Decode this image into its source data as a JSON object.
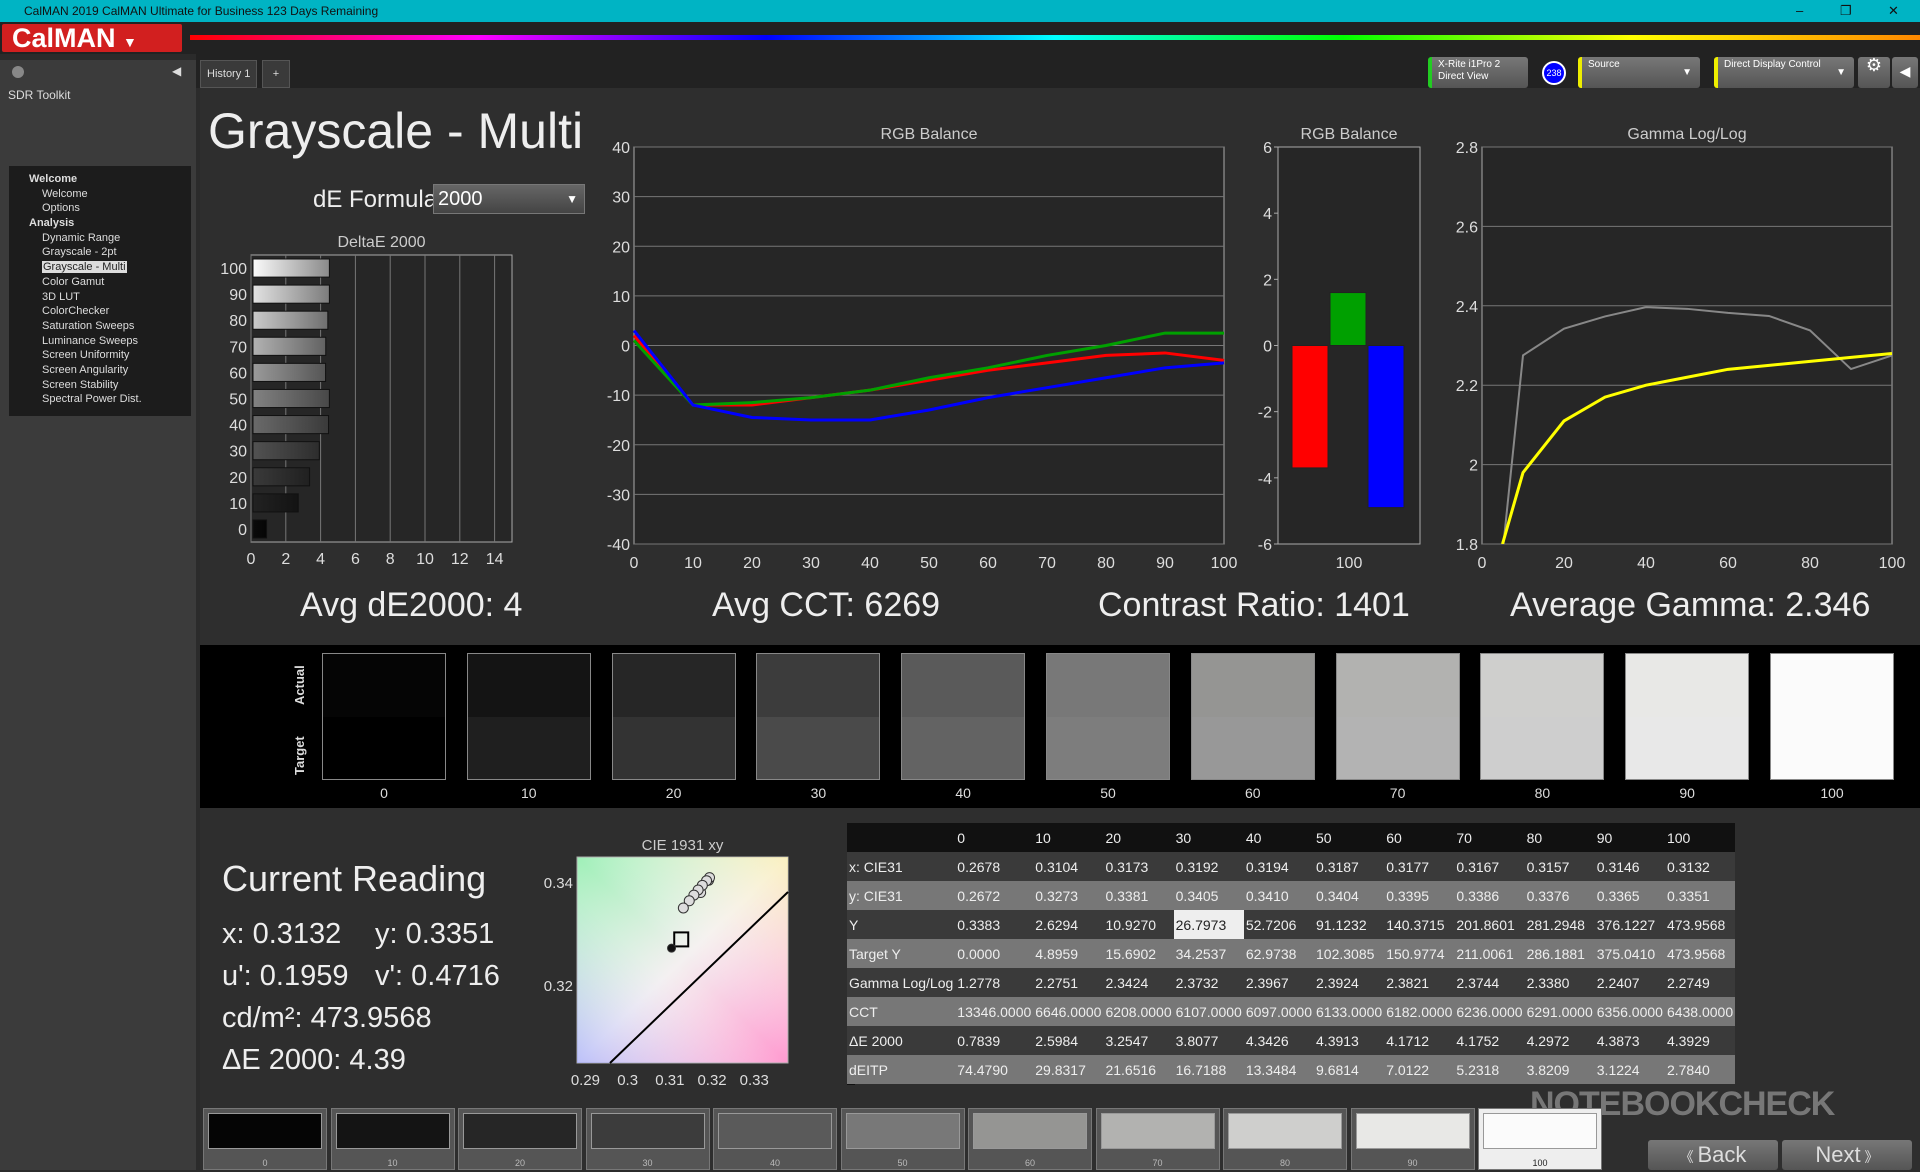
{
  "window": {
    "title": "CalMAN 2019 CalMAN Ultimate for Business 123 Days Remaining",
    "min": "–",
    "max": "❐",
    "close": "✕"
  },
  "logo": "CalMAN",
  "tabs": {
    "history": "History 1",
    "add": "+"
  },
  "toolbar": {
    "meter_line1": "X-Rite i1Pro 2",
    "meter_line2": "Direct View",
    "meter_badge": "238",
    "source": "Source",
    "display": "Direct Display Control"
  },
  "sidebar": {
    "title": "SDR Toolkit",
    "items": [
      {
        "label": "Welcome",
        "type": "group"
      },
      {
        "label": "Welcome",
        "type": "item"
      },
      {
        "label": "Options",
        "type": "item"
      },
      {
        "label": "Analysis",
        "type": "group"
      },
      {
        "label": "Dynamic Range",
        "type": "item"
      },
      {
        "label": "Grayscale - 2pt",
        "type": "item"
      },
      {
        "label": "Grayscale - Multi",
        "type": "item",
        "selected": true
      },
      {
        "label": "Color Gamut",
        "type": "item"
      },
      {
        "label": "3D LUT",
        "type": "item"
      },
      {
        "label": "ColorChecker",
        "type": "item"
      },
      {
        "label": "Saturation Sweeps",
        "type": "item"
      },
      {
        "label": "Luminance Sweeps",
        "type": "item"
      },
      {
        "label": "Screen Uniformity",
        "type": "item"
      },
      {
        "label": "Screen Angularity",
        "type": "item"
      },
      {
        "label": "Screen Stability",
        "type": "item"
      },
      {
        "label": "Spectral Power Dist.",
        "type": "item"
      }
    ]
  },
  "page": {
    "title": "Grayscale - Multi",
    "de_formula_label": "dE Formula:",
    "de_formula_value": "2000"
  },
  "summary": {
    "avg_de": "Avg dE2000: 4",
    "avg_cct": "Avg CCT: 6269",
    "contrast": "Contrast Ratio: 1401",
    "avg_gamma": "Average Gamma: 2.346"
  },
  "colors": {
    "red": "#ff0000",
    "green": "#00a000",
    "blue": "#0000ff",
    "target": "#ffff00",
    "measured_gamma": "#888888",
    "accent": "#d21f1f"
  },
  "chart_data": [
    {
      "type": "bar",
      "title": "DeltaE 2000",
      "orientation": "horizontal",
      "categories": [
        "100",
        "90",
        "80",
        "70",
        "60",
        "50",
        "40",
        "30",
        "20",
        "10",
        "0"
      ],
      "values": [
        4.39,
        4.39,
        4.3,
        4.18,
        4.17,
        4.39,
        4.34,
        3.81,
        3.25,
        2.6,
        0.78
      ],
      "xlim": [
        0,
        15
      ],
      "xticks": [
        0,
        2,
        4,
        6,
        8,
        10,
        12,
        14
      ],
      "grid": true
    },
    {
      "type": "line",
      "title": "RGB Balance",
      "x": [
        0,
        10,
        20,
        30,
        40,
        50,
        60,
        70,
        80,
        90,
        100
      ],
      "xlim": [
        0,
        100
      ],
      "ylim": [
        -40,
        40
      ],
      "yticks": [
        40,
        30,
        20,
        10,
        0,
        -10,
        -20,
        -30,
        -40
      ],
      "xticks": [
        0,
        10,
        20,
        30,
        40,
        50,
        60,
        70,
        80,
        90,
        100
      ],
      "grid": true,
      "series": [
        {
          "color": "#ff0000",
          "values": [
            2,
            -12,
            -12,
            -10.5,
            -9,
            -7,
            -5,
            -3.5,
            -2,
            -1.5,
            -3
          ]
        },
        {
          "color": "#00a000",
          "values": [
            1,
            -12,
            -11.5,
            -10.5,
            -9,
            -6.5,
            -4.5,
            -2,
            0,
            2.5,
            2.5
          ]
        },
        {
          "color": "#0000ff",
          "values": [
            3,
            -12,
            -14.5,
            -15,
            -15,
            -13,
            -10.5,
            -8.5,
            -6.5,
            -4.5,
            -3.5
          ]
        }
      ]
    },
    {
      "type": "bar",
      "title": "RGB Balance",
      "categories": [
        "100"
      ],
      "ylim": [
        -6,
        6
      ],
      "yticks": [
        6,
        4,
        2,
        0,
        -2,
        -4,
        -6
      ],
      "series": [
        {
          "color": "#ff0000",
          "values": [
            -3.7
          ]
        },
        {
          "color": "#00a000",
          "values": [
            1.6
          ]
        },
        {
          "color": "#0000ff",
          "values": [
            -4.9
          ]
        }
      ]
    },
    {
      "type": "line",
      "title": "Gamma Log/Log",
      "xlim": [
        0,
        100
      ],
      "ylim": [
        1.8,
        2.8
      ],
      "xticks": [
        0,
        20,
        40,
        60,
        80,
        100
      ],
      "yticks": [
        "2.8",
        "2.6",
        "2.4",
        "2.2",
        "2",
        "1.8"
      ],
      "grid": true,
      "series": [
        {
          "color": "#888888",
          "x": [
            0,
            10,
            20,
            30,
            40,
            50,
            60,
            70,
            80,
            90,
            100
          ],
          "values": [
            1.2778,
            2.2751,
            2.3424,
            2.3732,
            2.3967,
            2.3924,
            2.3821,
            2.3744,
            2.338,
            2.2407,
            2.2749
          ]
        },
        {
          "color": "#ffff00",
          "x": [
            5,
            10,
            20,
            30,
            40,
            50,
            60,
            70,
            80,
            90,
            100
          ],
          "values": [
            1.8,
            1.98,
            2.11,
            2.17,
            2.2,
            2.22,
            2.24,
            2.25,
            2.26,
            2.27,
            2.28
          ]
        }
      ]
    },
    {
      "type": "scatter",
      "title": "CIE 1931 xy",
      "xlim": [
        0.288,
        0.338
      ],
      "ylim": [
        0.305,
        0.345
      ],
      "xticks": [
        "0.29",
        "0.3",
        "0.31",
        "0.32",
        "0.33"
      ],
      "yticks": [
        "0.34",
        "0.32"
      ],
      "points": {
        "x": [
          0.3104,
          0.3173,
          0.3192,
          0.3194,
          0.3187,
          0.3177,
          0.3167,
          0.3157,
          0.3146,
          0.3132
        ],
        "y": [
          0.3273,
          0.3381,
          0.3405,
          0.341,
          0.3404,
          0.3395,
          0.3386,
          0.3376,
          0.3365,
          0.3351
        ]
      },
      "target": {
        "x": 0.3127,
        "y": 0.329
      }
    }
  ],
  "swatches": {
    "actual_label": "Actual",
    "target_label": "Target",
    "labels": [
      "0",
      "10",
      "20",
      "30",
      "40",
      "50",
      "60",
      "70",
      "80",
      "90",
      "100"
    ],
    "actual": [
      "#050505",
      "#141414",
      "#262626",
      "#3c3c3c",
      "#5a5a5a",
      "#787878",
      "#959593",
      "#b2b2b0",
      "#cfcfcd",
      "#e8e8e6",
      "#fbfbfb"
    ],
    "target": [
      "#000000",
      "#1f1f1f",
      "#333333",
      "#4a4a4a",
      "#636363",
      "#7d7d7d",
      "#989898",
      "#b3b3b3",
      "#cecece",
      "#e8e8e8",
      "#fbfbfb"
    ]
  },
  "reading": {
    "title": "Current Reading",
    "x": "x: 0.3132",
    "y": "y: 0.3351",
    "u": "u': 0.1959",
    "v": "v': 0.4716",
    "cdm2": "cd/m²: 473.9568",
    "de": "ΔE 2000: 4.39"
  },
  "table": {
    "columns": [
      "",
      "0",
      "10",
      "20",
      "30",
      "40",
      "50",
      "60",
      "70",
      "80",
      "90",
      "100"
    ],
    "rows": [
      [
        "x: CIE31",
        "0.2678",
        "0.3104",
        "0.3173",
        "0.3192",
        "0.3194",
        "0.3187",
        "0.3177",
        "0.3167",
        "0.3157",
        "0.3146",
        "0.3132"
      ],
      [
        "y: CIE31",
        "0.2672",
        "0.3273",
        "0.3381",
        "0.3405",
        "0.3410",
        "0.3404",
        "0.3395",
        "0.3386",
        "0.3376",
        "0.3365",
        "0.3351"
      ],
      [
        "Y",
        "0.3383",
        "2.6294",
        "10.9270",
        "26.7973",
        "52.7206",
        "91.1232",
        "140.3715",
        "201.8601",
        "281.2948",
        "376.1227",
        "473.9568"
      ],
      [
        "Target Y",
        "0.0000",
        "4.8959",
        "15.6902",
        "34.2537",
        "62.9738",
        "102.3085",
        "150.9774",
        "211.0061",
        "286.1881",
        "375.0410",
        "473.9568"
      ],
      [
        "Gamma Log/Log",
        "1.2778",
        "2.2751",
        "2.3424",
        "2.3732",
        "2.3967",
        "2.3924",
        "2.3821",
        "2.3744",
        "2.3380",
        "2.2407",
        "2.2749"
      ],
      [
        "CCT",
        "13346.0000",
        "6646.0000",
        "6208.0000",
        "6107.0000",
        "6097.0000",
        "6133.0000",
        "6182.0000",
        "6236.0000",
        "6291.0000",
        "6356.0000",
        "6438.0000"
      ],
      [
        "ΔE 2000",
        "0.7839",
        "2.5984",
        "3.2547",
        "3.8077",
        "4.3426",
        "4.3913",
        "4.1712",
        "4.1752",
        "4.2972",
        "4.3873",
        "4.3929"
      ],
      [
        "dEITP",
        "74.4790",
        "29.8317",
        "21.6516",
        "16.7188",
        "13.3484",
        "9.6814",
        "7.0122",
        "5.2318",
        "3.8209",
        "3.1224",
        "2.7840"
      ]
    ]
  },
  "nav": {
    "back": "Back",
    "next": "Next"
  },
  "watermark": "NOTEBOOKCHECK"
}
